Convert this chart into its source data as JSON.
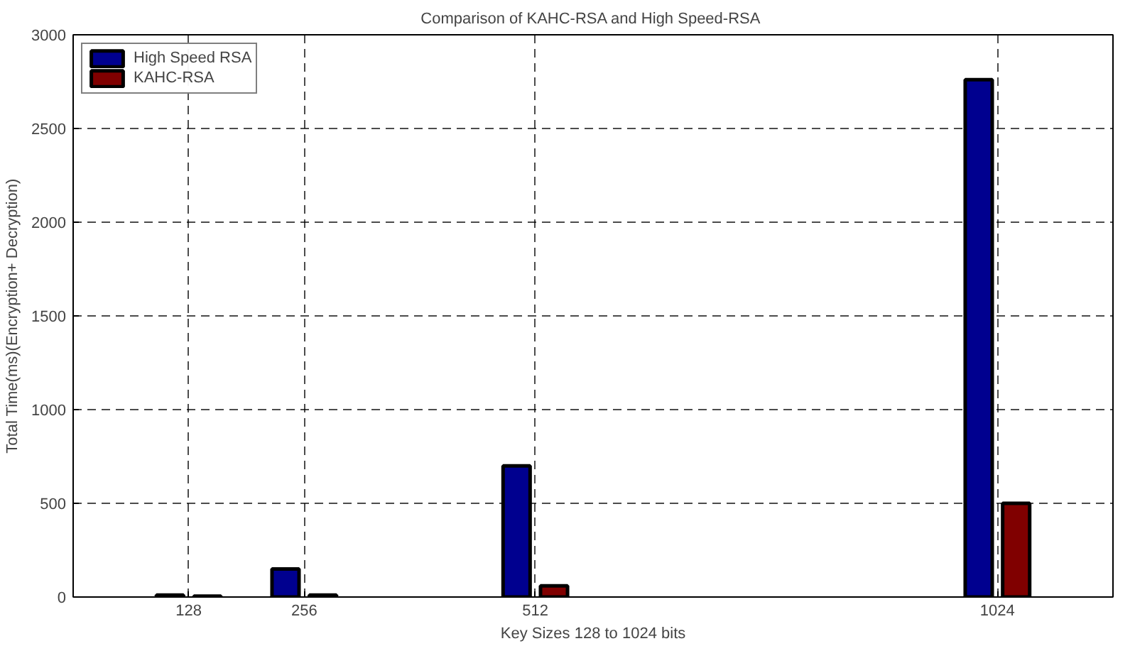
{
  "chart_data": {
    "type": "bar",
    "title": "Comparison of  KAHC-RSA and High Speed-RSA",
    "xlabel": "Key Sizes 128 to 1024 bits",
    "ylabel": "Total Time(ms)(Encryption+ Decryption)",
    "x": [
      128,
      256,
      512,
      1024
    ],
    "series": [
      {
        "name": "High Speed RSA",
        "color": "#00008f",
        "values": [
          10,
          150,
          700,
          2760
        ]
      },
      {
        "name": "KAHC-RSA",
        "color": "#800000",
        "values": [
          5,
          10,
          60,
          500
        ]
      }
    ],
    "xlim": [
      0,
      1152
    ],
    "xticks": [
      128,
      256,
      512,
      1024
    ],
    "ylim": [
      0,
      3000
    ],
    "yticks": [
      0,
      500,
      1000,
      1500,
      2000,
      2500,
      3000
    ],
    "grid": true,
    "legend": "top left"
  }
}
